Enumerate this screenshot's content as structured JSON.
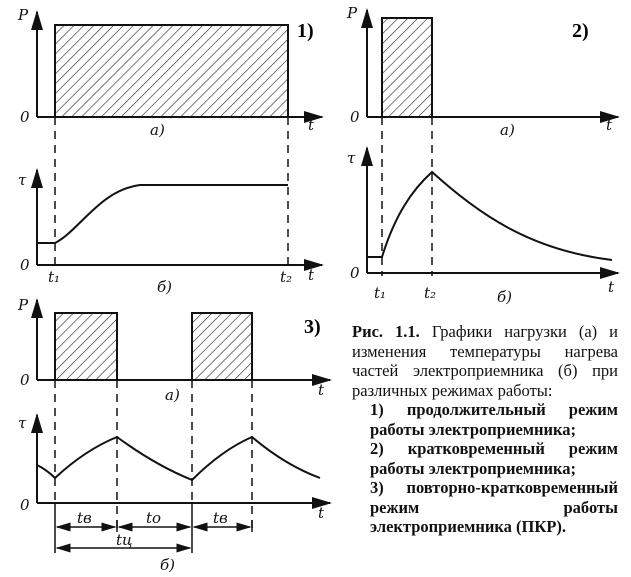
{
  "labels": {
    "P": "P",
    "tau": "τ",
    "zero": "0",
    "t": "t",
    "a": "а)",
    "b": "б)",
    "t1": "t₁",
    "t2": "t₂",
    "tv": "tв",
    "to": "tо",
    "tc": "tц"
  },
  "panels": [
    "1)",
    "2)",
    "3)"
  ],
  "caption": {
    "prefix": "Рис. 1.1.",
    "text": "Графики нагрузки (а) и изменения температуры нагрева частей электроприемника (б) при различных режимах работы:",
    "items": [
      "1) продолжительный режим работы электроприемника;",
      "2) кратковременный режим работы электроприемника;",
      "3) повторно-кратковременный режим работы электроприемника (ПКР)."
    ]
  }
}
